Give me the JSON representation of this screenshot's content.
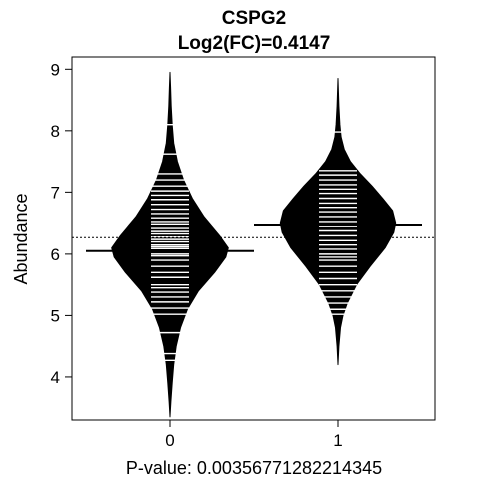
{
  "chart_data": {
    "type": "beanplot",
    "title": "CSPG2",
    "subtitle": "Log2(FC)=0.4147",
    "xlabel": "P-value: 0.00356771282214345",
    "ylabel": "Abundance",
    "categories": [
      "0",
      "1"
    ],
    "ylim": [
      3.3,
      9.2
    ],
    "yticks": [
      4,
      5,
      6,
      7,
      8,
      9
    ],
    "ytick_labels": [
      "4",
      "5",
      "6",
      "7",
      "8",
      "9"
    ],
    "overall_mean": 6.27,
    "group_means": [
      6.05,
      6.47
    ],
    "grid": false,
    "beans": [
      {
        "category": "0",
        "range": [
          3.35,
          8.95
        ],
        "density": [
          [
            3.35,
            0.0
          ],
          [
            3.6,
            0.015
          ],
          [
            3.9,
            0.035
          ],
          [
            4.2,
            0.06
          ],
          [
            4.5,
            0.1
          ],
          [
            4.8,
            0.17
          ],
          [
            5.1,
            0.28
          ],
          [
            5.4,
            0.46
          ],
          [
            5.7,
            0.72
          ],
          [
            5.95,
            0.9
          ],
          [
            6.1,
            0.94
          ],
          [
            6.3,
            0.8
          ],
          [
            6.6,
            0.55
          ],
          [
            6.9,
            0.36
          ],
          [
            7.2,
            0.22
          ],
          [
            7.5,
            0.12
          ],
          [
            7.8,
            0.06
          ],
          [
            8.1,
            0.035
          ],
          [
            8.4,
            0.02
          ],
          [
            8.7,
            0.01
          ],
          [
            8.95,
            0.0
          ]
        ],
        "points": [
          4.27,
          4.38,
          4.72,
          5.02,
          5.12,
          5.22,
          5.3,
          5.38,
          5.45,
          5.5,
          5.62,
          5.7,
          5.8,
          5.9,
          5.97,
          6.0,
          6.05,
          6.09,
          6.12,
          6.15,
          6.2,
          6.24,
          6.28,
          6.33,
          6.37,
          6.42,
          6.48,
          6.52,
          6.58,
          6.65,
          6.72,
          6.8,
          6.88,
          6.95,
          7.02,
          7.1,
          7.2,
          7.3,
          7.62,
          8.1
        ]
      },
      {
        "category": "1",
        "range": [
          4.2,
          8.85
        ],
        "density": [
          [
            4.2,
            0.0
          ],
          [
            4.5,
            0.015
          ],
          [
            4.8,
            0.04
          ],
          [
            5.0,
            0.08
          ],
          [
            5.2,
            0.15
          ],
          [
            5.5,
            0.3
          ],
          [
            5.8,
            0.52
          ],
          [
            6.1,
            0.76
          ],
          [
            6.35,
            0.9
          ],
          [
            6.5,
            0.93
          ],
          [
            6.7,
            0.88
          ],
          [
            6.9,
            0.72
          ],
          [
            7.1,
            0.55
          ],
          [
            7.3,
            0.36
          ],
          [
            7.5,
            0.2
          ],
          [
            7.7,
            0.1
          ],
          [
            7.9,
            0.05
          ],
          [
            8.1,
            0.03
          ],
          [
            8.4,
            0.015
          ],
          [
            8.85,
            0.0
          ]
        ],
        "points": [
          5.02,
          5.1,
          5.2,
          5.3,
          5.4,
          5.5,
          5.6,
          5.7,
          5.8,
          5.9,
          5.95,
          6.0,
          6.08,
          6.15,
          6.22,
          6.3,
          6.38,
          6.45,
          6.52,
          6.6,
          6.68,
          6.75,
          6.82,
          6.9,
          6.98,
          7.05,
          7.12,
          7.2,
          7.28,
          7.35,
          7.98
        ]
      }
    ]
  }
}
